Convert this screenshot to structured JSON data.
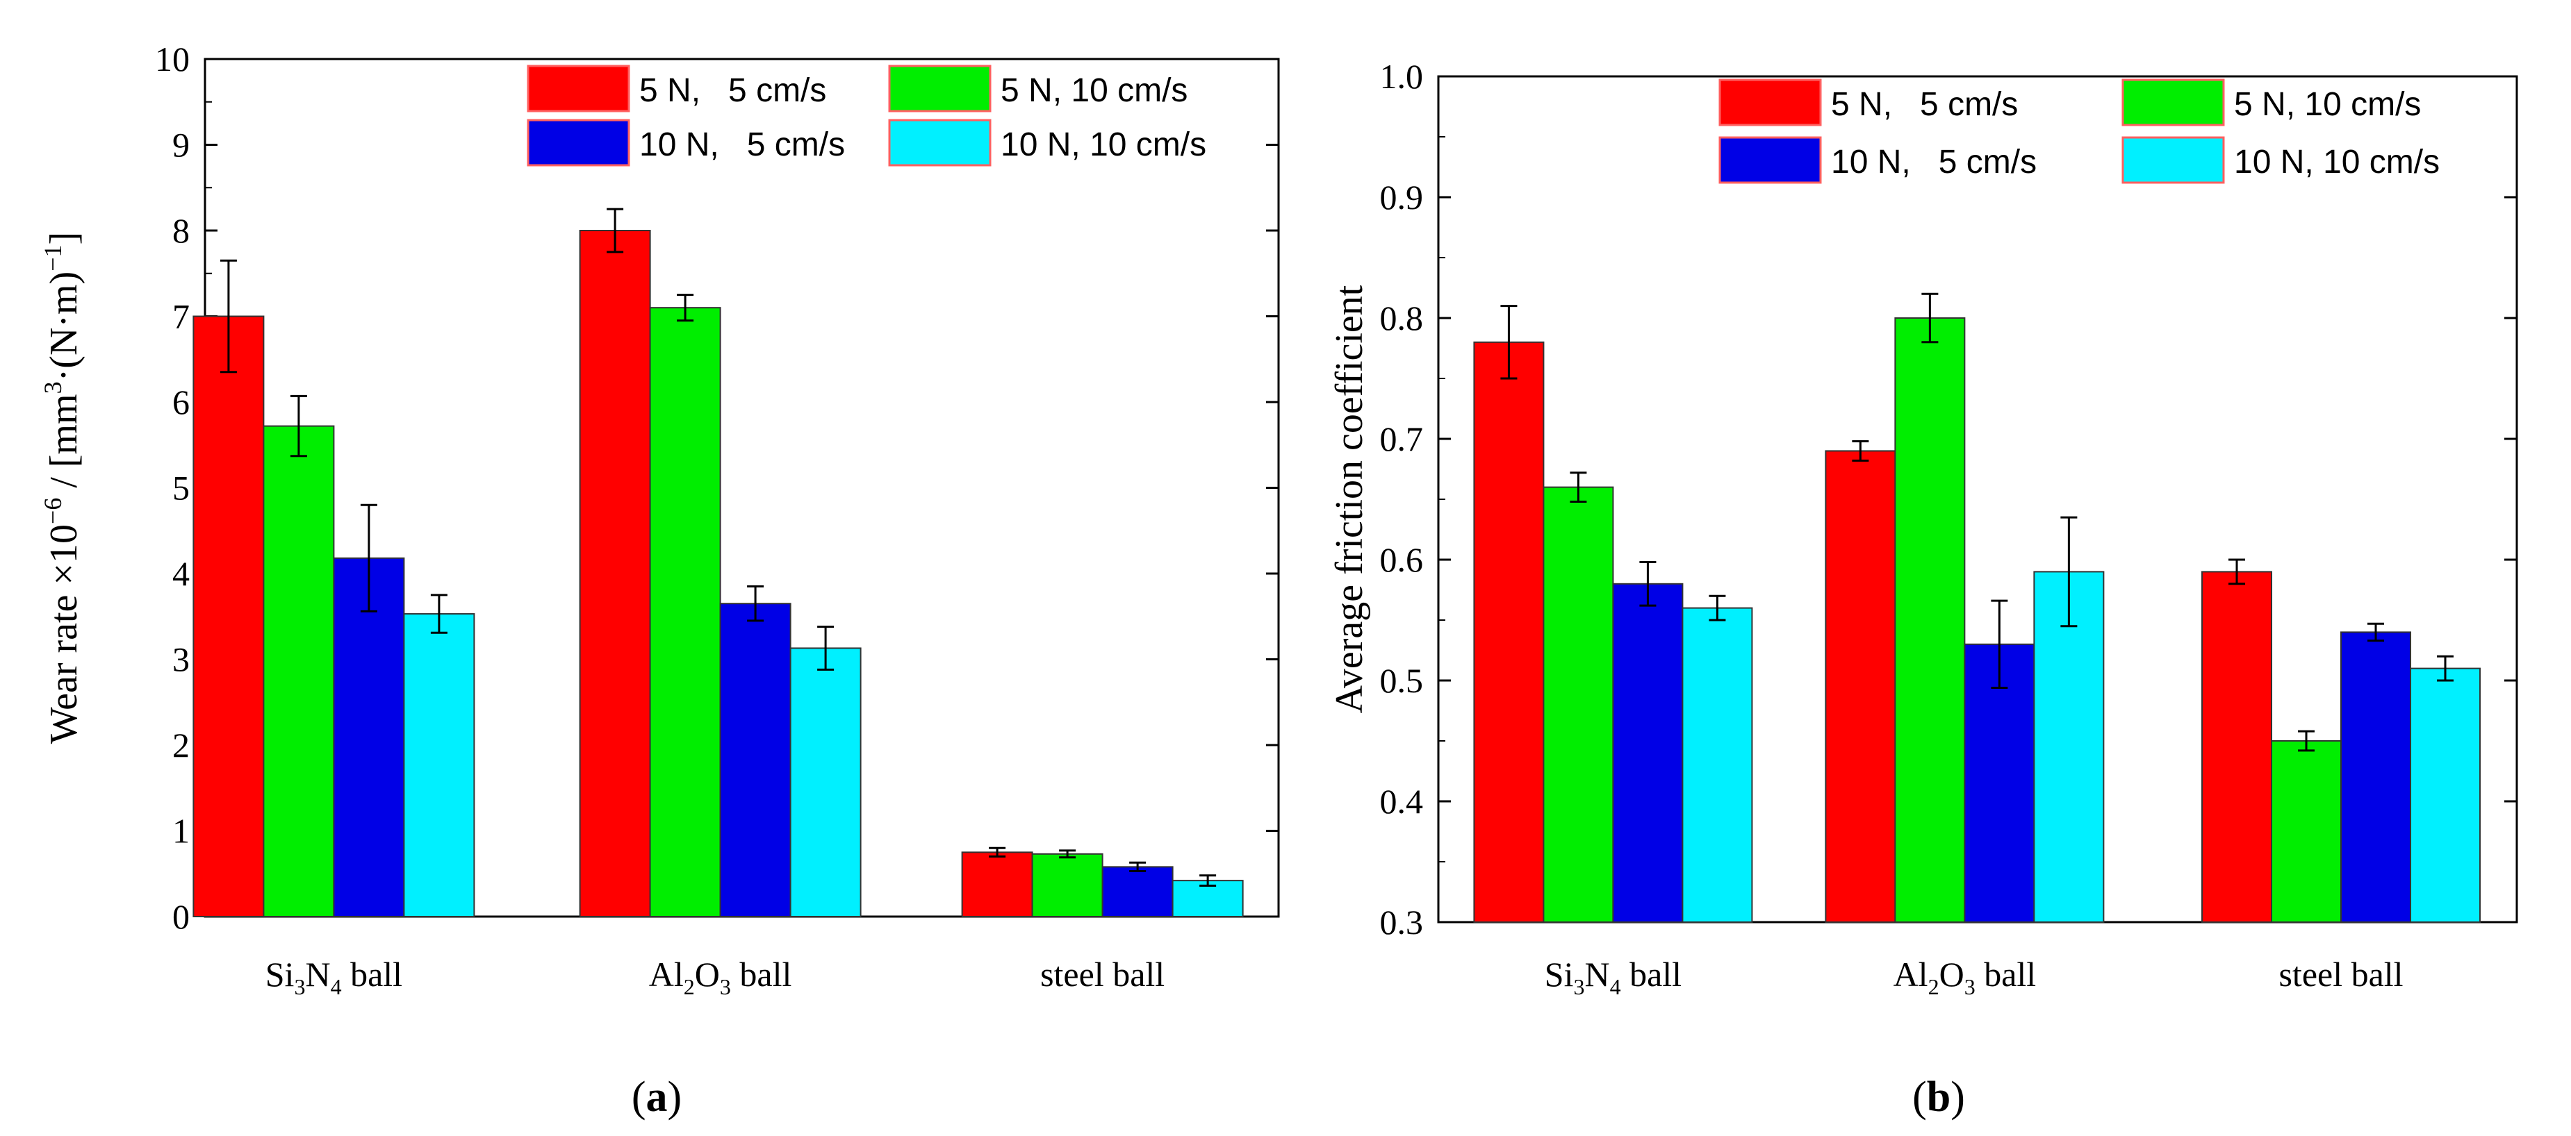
{
  "colors": {
    "red": "#ff0000",
    "green": "#00ee00",
    "blue": "#0000e6",
    "cyan": "#00f0ff",
    "axis": "#000000",
    "bar_edge": "#333333"
  },
  "chart_data": [
    {
      "type": "bar",
      "panel_label": "a",
      "title": "",
      "xlabel": "",
      "ylabel": "Wear rate ×10",
      "ylabel_parts": {
        "prefix": "Wear rate ×10",
        "exp1": "−6",
        "mid1": " / [mm",
        "exp2": "3",
        "mid2": "·(N·m)",
        "exp3": "−1",
        "suffix": "]"
      },
      "ylim": [
        0,
        10
      ],
      "ytick_step": 1,
      "yticks": [
        "0",
        "1",
        "2",
        "3",
        "4",
        "5",
        "6",
        "7",
        "8",
        "9",
        "10"
      ],
      "grid": false,
      "categories": [
        {
          "label": "Si",
          "sub1": "3",
          "mid": "N",
          "sub2": "4",
          "tail": " ball"
        },
        {
          "label": "Al",
          "sub1": "2",
          "mid": "O",
          "sub2": "3",
          "tail": " ball"
        },
        {
          "label": "steel ball",
          "sub1": "",
          "mid": "",
          "sub2": "",
          "tail": ""
        }
      ],
      "series": [
        {
          "name": "5 N,   5 cm/s",
          "color": "#ff0000",
          "values": [
            7.0,
            8.0,
            0.75
          ],
          "errors": [
            0.65,
            0.25,
            0.05
          ]
        },
        {
          "name": "5 N, 10 cm/s",
          "color": "#00ee00",
          "values": [
            5.72,
            7.1,
            0.73
          ],
          "errors": [
            0.35,
            0.15,
            0.04
          ]
        },
        {
          "name": "10 N,   5 cm/s",
          "color": "#0000e6",
          "values": [
            4.18,
            3.65,
            0.58
          ],
          "errors": [
            0.62,
            0.2,
            0.05
          ]
        },
        {
          "name": "10 N, 10 cm/s",
          "color": "#00f0ff",
          "values": [
            3.53,
            3.13,
            0.42
          ],
          "errors": [
            0.22,
            0.25,
            0.06
          ]
        }
      ],
      "legend": {
        "placement": "top-right",
        "order": [
          0,
          2,
          1,
          3
        ],
        "labels": [
          "5 N,   5 cm/s",
          "10 N,   5 cm/s",
          "5 N, 10 cm/s",
          "10 N, 10 cm/s"
        ]
      }
    },
    {
      "type": "bar",
      "panel_label": "b",
      "title": "",
      "xlabel": "",
      "ylabel": "Average friction coefficient",
      "ylim": [
        0.3,
        1.0
      ],
      "ytick_step": 0.1,
      "yticks": [
        "0.3",
        "0.4",
        "0.5",
        "0.6",
        "0.7",
        "0.8",
        "0.9",
        "1.0"
      ],
      "grid": false,
      "categories": [
        {
          "label": "Si",
          "sub1": "3",
          "mid": "N",
          "sub2": "4",
          "tail": " ball"
        },
        {
          "label": "Al",
          "sub1": "2",
          "mid": "O",
          "sub2": "3",
          "tail": " ball"
        },
        {
          "label": "steel ball",
          "sub1": "",
          "mid": "",
          "sub2": "",
          "tail": ""
        }
      ],
      "series": [
        {
          "name": "5 N,   5 cm/s",
          "color": "#ff0000",
          "values": [
            0.78,
            0.69,
            0.59
          ],
          "errors": [
            0.03,
            0.008,
            0.01
          ]
        },
        {
          "name": "5 N, 10 cm/s",
          "color": "#00ee00",
          "values": [
            0.66,
            0.8,
            0.45
          ],
          "errors": [
            0.012,
            0.02,
            0.008
          ]
        },
        {
          "name": "10 N,   5 cm/s",
          "color": "#0000e6",
          "values": [
            0.58,
            0.53,
            0.54
          ],
          "errors": [
            0.018,
            0.036,
            0.007
          ]
        },
        {
          "name": "10 N, 10 cm/s",
          "color": "#00f0ff",
          "values": [
            0.56,
            0.59,
            0.51
          ],
          "errors": [
            0.01,
            0.045,
            0.01
          ]
        }
      ],
      "legend": {
        "placement": "top-right",
        "order": [
          0,
          2,
          1,
          3
        ],
        "labels": [
          "5 N,   5 cm/s",
          "10 N,   5 cm/s",
          "5 N, 10 cm/s",
          "10 N, 10 cm/s"
        ]
      }
    }
  ]
}
